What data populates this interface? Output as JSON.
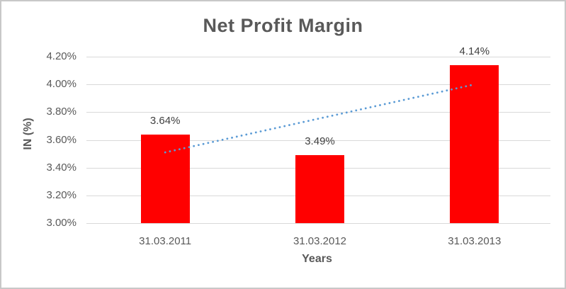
{
  "chart_data": {
    "type": "bar",
    "title": "Net Profit Margin",
    "xlabel": "Years",
    "ylabel": "IN (%)",
    "categories": [
      "31.03.2011",
      "31.03.2012",
      "31.03.2013"
    ],
    "values": [
      3.64,
      3.49,
      4.14
    ],
    "data_labels": [
      "3.64%",
      "3.49%",
      "4.14%"
    ],
    "ylim": [
      3.0,
      4.2
    ],
    "ytick_step": 0.2,
    "ytick_labels_top_to_bottom": [
      "4.20%",
      "4.00%",
      "3.80%",
      "3.60%",
      "3.40%",
      "3.20%",
      "3.00%"
    ],
    "grid": true,
    "legend": "none",
    "bar_color": "#ff0000",
    "gridline_color": "#d9d9d9",
    "text_color": "#595959",
    "data_label_color": "#404040",
    "trendline": {
      "type": "linear",
      "style": "dotted",
      "color": "#5b9bd5",
      "start_value": 3.51,
      "end_value": 4.0
    }
  }
}
